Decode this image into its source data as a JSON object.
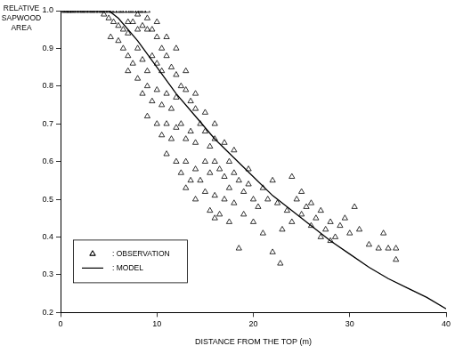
{
  "chart_data": {
    "type": "scatter",
    "x_label": "DISTANCE FROM THE TOP (m)",
    "y_label": "RELATIVE SAPWOOD AREA",
    "xlim": [
      0,
      40
    ],
    "xticks": [
      0,
      10,
      20,
      30,
      40
    ],
    "ylim": [
      0.2,
      1
    ],
    "yticks": [
      0.2,
      0.3,
      0.4,
      0.5,
      0.6,
      0.7,
      0.8,
      0.9,
      {
        "value": 1,
        "label": "1.0"
      }
    ],
    "grid": false,
    "legend": "lower left",
    "series": [
      {
        "name": ": OBSERVATION",
        "type": "scatter",
        "marker": "triangle",
        "line_style": "none",
        "color": "#000000",
        "x": [
          0.2,
          0.5,
          0.8,
          1.0,
          1.3,
          1.6,
          2.0,
          2.3,
          2.6,
          3.0,
          3.3,
          3.6,
          4.0,
          4.3,
          4.6,
          5.0,
          5.3,
          5.6,
          6.0,
          6.3,
          6.6,
          7.0,
          7.3,
          7.6,
          8.0,
          8.3,
          8.6,
          9.0,
          4.5,
          5,
          5.5,
          6,
          6.5,
          5.2,
          6,
          7,
          7.5,
          8,
          8.5,
          9,
          9.5,
          10,
          10.5,
          6.5,
          7,
          7.5,
          8,
          8.5,
          9,
          9.5,
          10,
          10.5,
          11,
          11.5,
          12,
          7,
          8,
          8.5,
          9,
          9.5,
          10,
          10.5,
          11,
          11.5,
          12,
          12.5,
          13,
          13.5,
          14,
          9,
          10,
          10.5,
          11,
          11.5,
          12,
          12.5,
          13,
          13.5,
          14,
          14.5,
          15,
          15.5,
          16,
          11,
          12,
          12.5,
          13,
          13.5,
          14,
          14.5,
          15,
          15.5,
          16,
          16.5,
          17,
          17.5,
          18,
          13,
          14,
          15,
          15.5,
          16,
          16.5,
          17,
          17.5,
          18,
          18.5,
          19,
          19.5,
          20,
          16,
          17.5,
          18.5,
          19,
          20,
          20.5,
          21,
          21.5,
          22,
          22.5,
          23,
          22,
          22.8,
          23.5,
          24,
          24.5,
          25,
          25.5,
          26,
          26.5,
          27,
          27.5,
          28,
          28.5,
          29,
          29.5,
          30,
          30.5,
          31,
          32,
          33,
          33.5,
          34,
          34.8,
          34.8,
          24,
          25,
          26,
          27,
          28,
          21,
          19.5,
          18,
          17,
          16,
          15,
          14,
          13,
          12,
          11,
          10,
          9,
          8,
          7
        ],
        "values": [
          1,
          1,
          1,
          1,
          1,
          1,
          1,
          1,
          1,
          1,
          1,
          1,
          1,
          1,
          1,
          1,
          1,
          1,
          1,
          1,
          1,
          1,
          1,
          1,
          1,
          1,
          1,
          1,
          0.99,
          0.98,
          0.97,
          0.96,
          0.95,
          0.93,
          0.92,
          0.94,
          0.97,
          0.99,
          0.96,
          0.98,
          0.95,
          0.93,
          0.9,
          0.9,
          0.88,
          0.86,
          0.9,
          0.87,
          0.84,
          0.88,
          0.86,
          0.84,
          0.88,
          0.85,
          0.83,
          0.84,
          0.82,
          0.78,
          0.8,
          0.76,
          0.79,
          0.75,
          0.78,
          0.74,
          0.77,
          0.8,
          0.79,
          0.76,
          0.74,
          0.72,
          0.7,
          0.67,
          0.7,
          0.66,
          0.69,
          0.7,
          0.66,
          0.68,
          0.65,
          0.7,
          0.68,
          0.64,
          0.66,
          0.62,
          0.6,
          0.57,
          0.6,
          0.55,
          0.58,
          0.55,
          0.6,
          0.57,
          0.6,
          0.58,
          0.56,
          0.6,
          0.57,
          0.53,
          0.5,
          0.52,
          0.47,
          0.51,
          0.46,
          0.5,
          0.53,
          0.49,
          0.55,
          0.52,
          0.54,
          0.5,
          0.45,
          0.44,
          0.37,
          0.46,
          0.44,
          0.48,
          0.53,
          0.5,
          0.55,
          0.49,
          0.42,
          0.36,
          0.33,
          0.47,
          0.44,
          0.5,
          0.46,
          0.48,
          0.43,
          0.45,
          0.47,
          0.42,
          0.44,
          0.4,
          0.43,
          0.45,
          0.41,
          0.48,
          0.42,
          0.38,
          0.37,
          0.41,
          0.37,
          0.34,
          0.37,
          0.56,
          0.52,
          0.49,
          0.4,
          0.39,
          0.41,
          0.58,
          0.63,
          0.65,
          0.7,
          0.73,
          0.78,
          0.84,
          0.9,
          0.93,
          0.97,
          0.95,
          0.95,
          0.97
        ]
      },
      {
        "name": ": MODEL",
        "type": "line",
        "marker": "none",
        "line_style": "solid",
        "color": "#000000",
        "x": [
          0,
          5,
          6,
          8,
          10,
          12,
          14,
          16,
          18,
          20,
          22,
          24,
          26,
          28,
          30,
          32,
          34,
          36,
          38,
          40
        ],
        "values": [
          1,
          1,
          0.98,
          0.92,
          0.85,
          0.78,
          0.72,
          0.66,
          0.61,
          0.56,
          0.51,
          0.47,
          0.43,
          0.39,
          0.355,
          0.32,
          0.29,
          0.265,
          0.24,
          0.21
        ]
      }
    ]
  }
}
